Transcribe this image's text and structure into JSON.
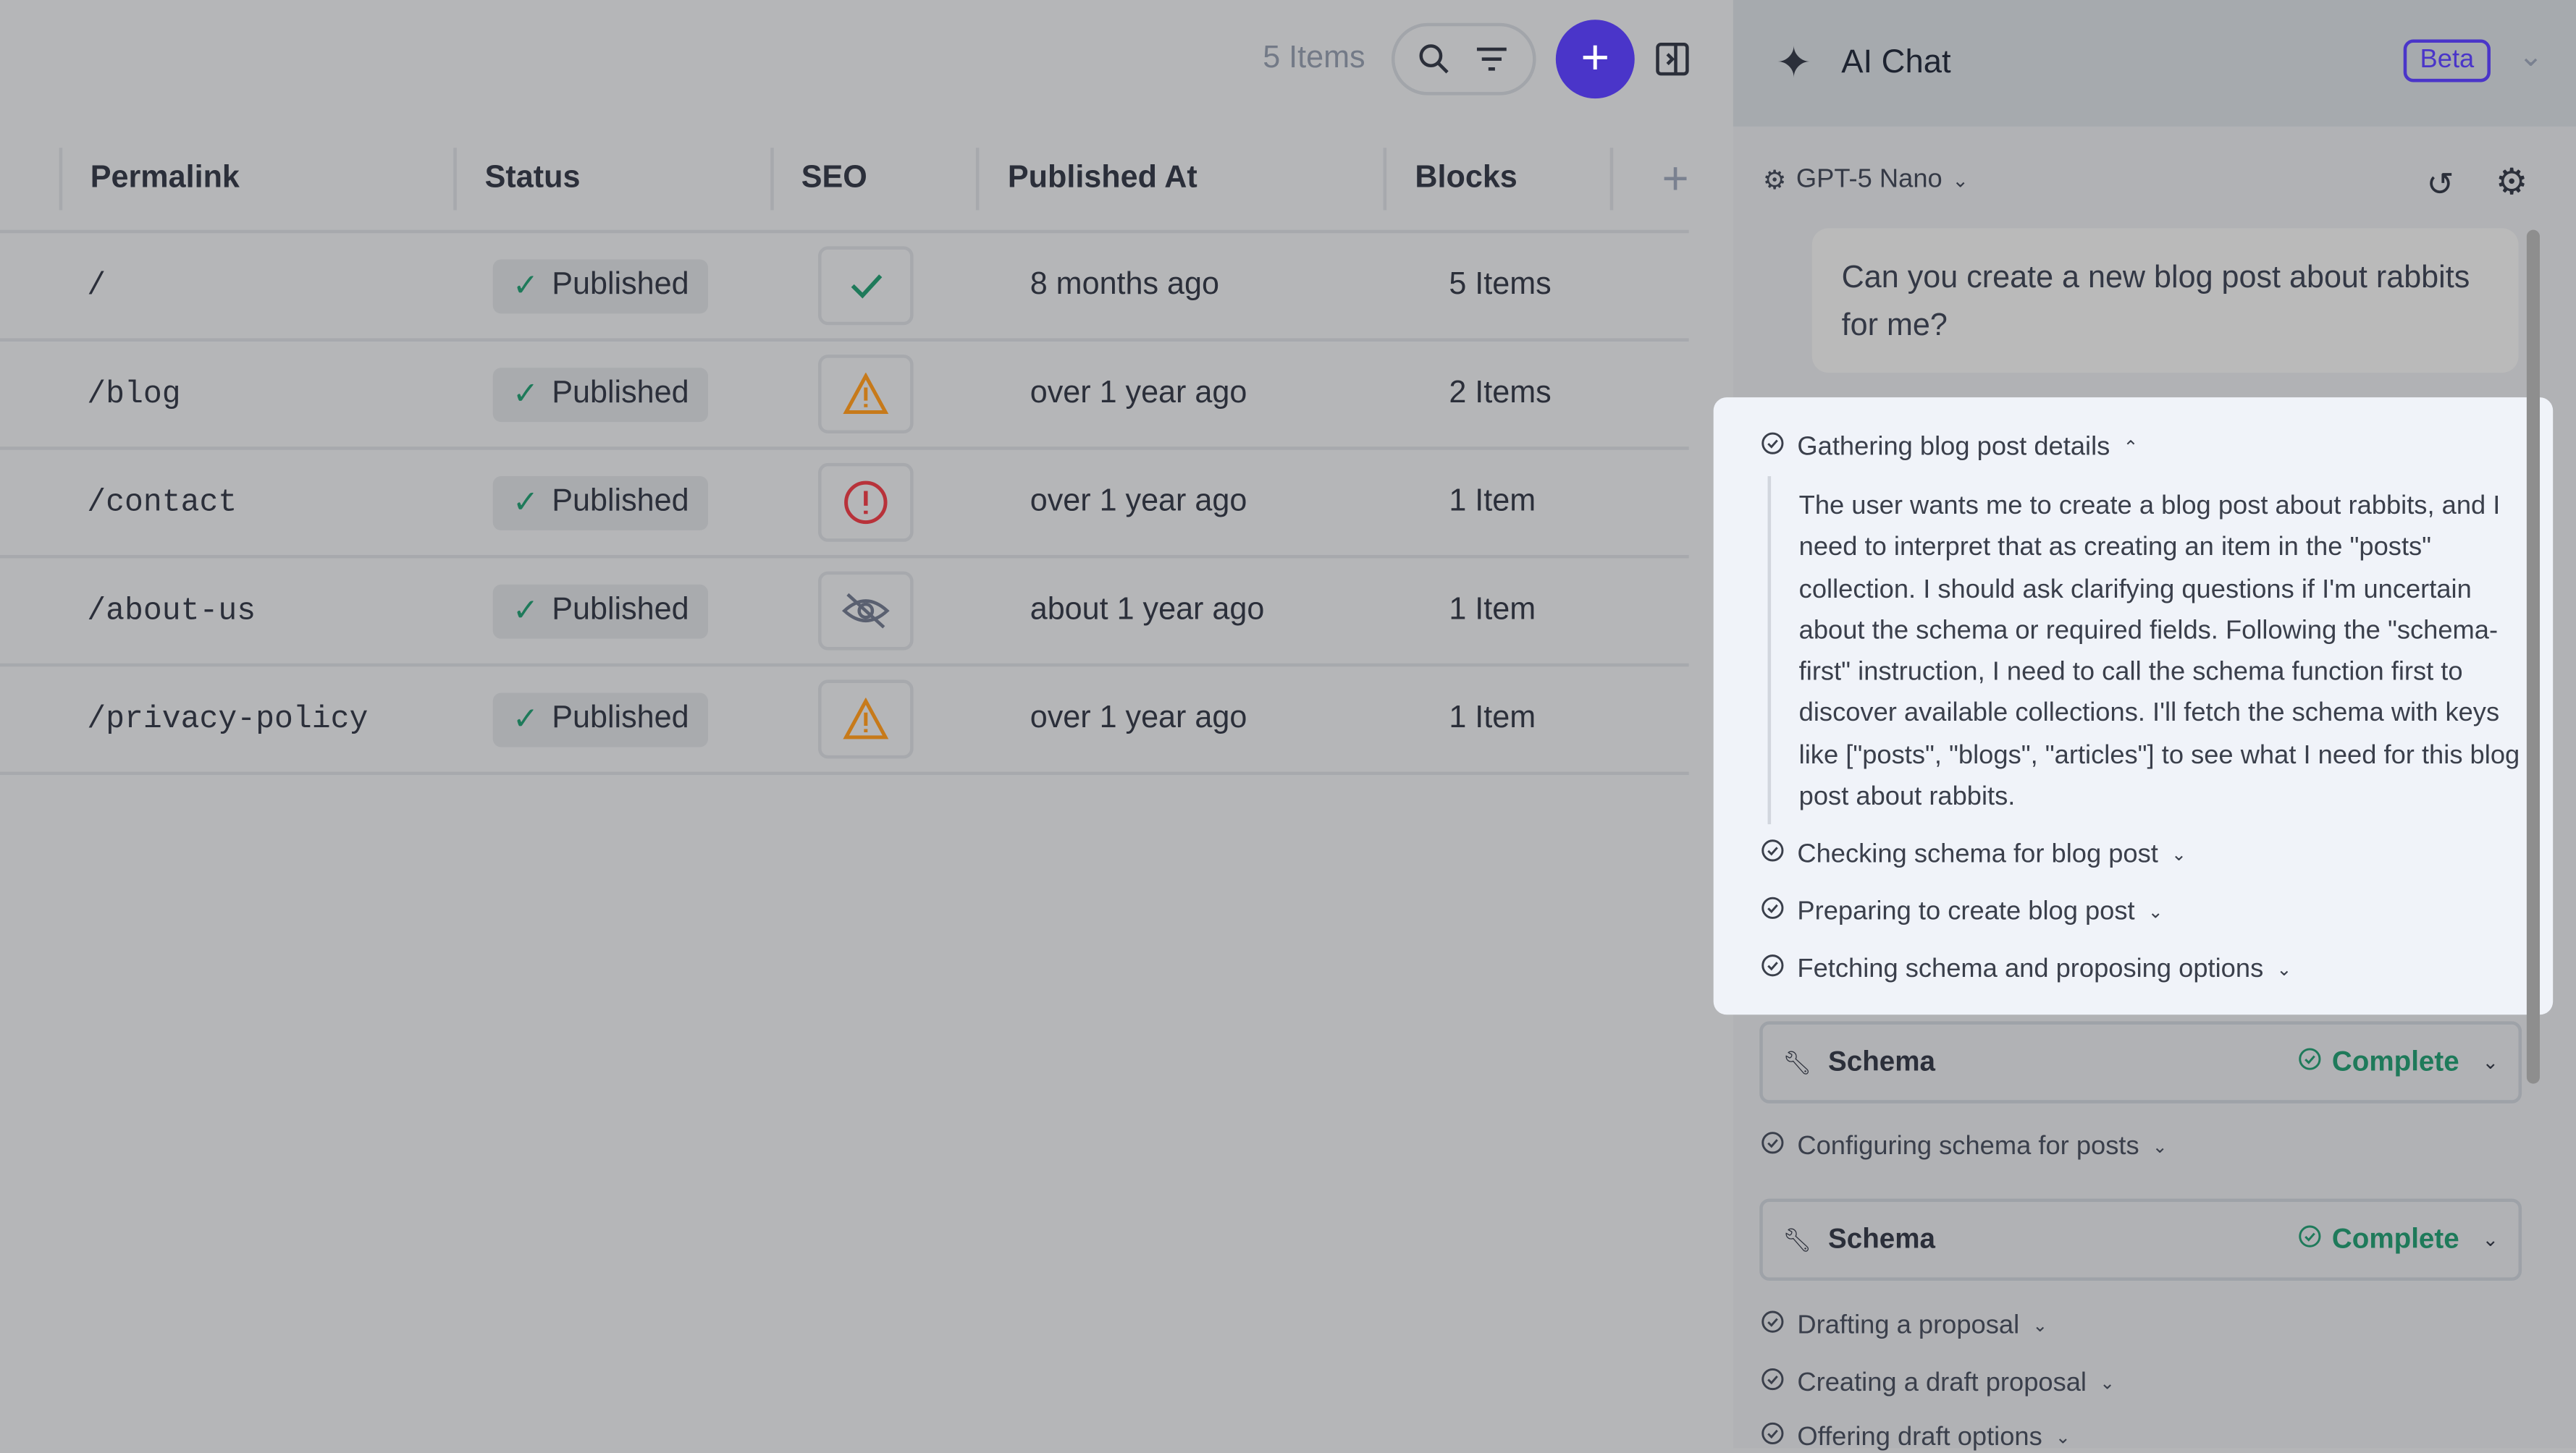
{
  "toolbar": {
    "item_count": "5 Items"
  },
  "table": {
    "headers": [
      "Permalink",
      "Status",
      "SEO",
      "Published At",
      "Blocks"
    ],
    "rows": [
      {
        "permalink": "/",
        "status": "Published",
        "seo": "ok",
        "published": "8 months ago",
        "blocks": "5 Items"
      },
      {
        "permalink": "/blog",
        "status": "Published",
        "seo": "warning",
        "published": "over 1 year ago",
        "blocks": "2 Items"
      },
      {
        "permalink": "/contact",
        "status": "Published",
        "seo": "error",
        "published": "over 1 year ago",
        "blocks": "1 Item"
      },
      {
        "permalink": "/about-us",
        "status": "Published",
        "seo": "hidden",
        "published": "about 1 year ago",
        "blocks": "1 Item"
      },
      {
        "permalink": "/privacy-policy",
        "status": "Published",
        "seo": "warning",
        "published": "over 1 year ago",
        "blocks": "1 Item"
      }
    ]
  },
  "chat": {
    "title": "AI Chat",
    "badge": "Beta",
    "model": "GPT-5 Nano",
    "user_message": "Can you create a new blog post about rabbits for me?",
    "steps": [
      "Gathering blog post details",
      "Checking schema for blog post",
      "Preparing to create blog post",
      "Fetching schema and proposing options",
      "Configuring schema for posts",
      "Drafting a proposal",
      "Creating a draft proposal",
      "Offering draft options"
    ],
    "thinking": "The user wants me to create a blog post about rabbits, and I need to interpret that as creating an item in the \"posts\" collection. I should ask clarifying questions if I'm uncertain about the schema or required fields. Following the \"schema-first\" instruction, I need to call the schema function first to discover available collections. I'll fetch the schema with keys like [\"posts\", \"blogs\", \"articles\"] to see what I need for this blog post about rabbits.",
    "tools": [
      {
        "name": "Schema",
        "status": "Complete"
      },
      {
        "name": "Schema",
        "status": "Complete"
      }
    ]
  },
  "colors": {
    "accent": "#4a35c9",
    "success": "#1e7a5a",
    "warning": "#c77a1a",
    "error": "#b8323a"
  }
}
